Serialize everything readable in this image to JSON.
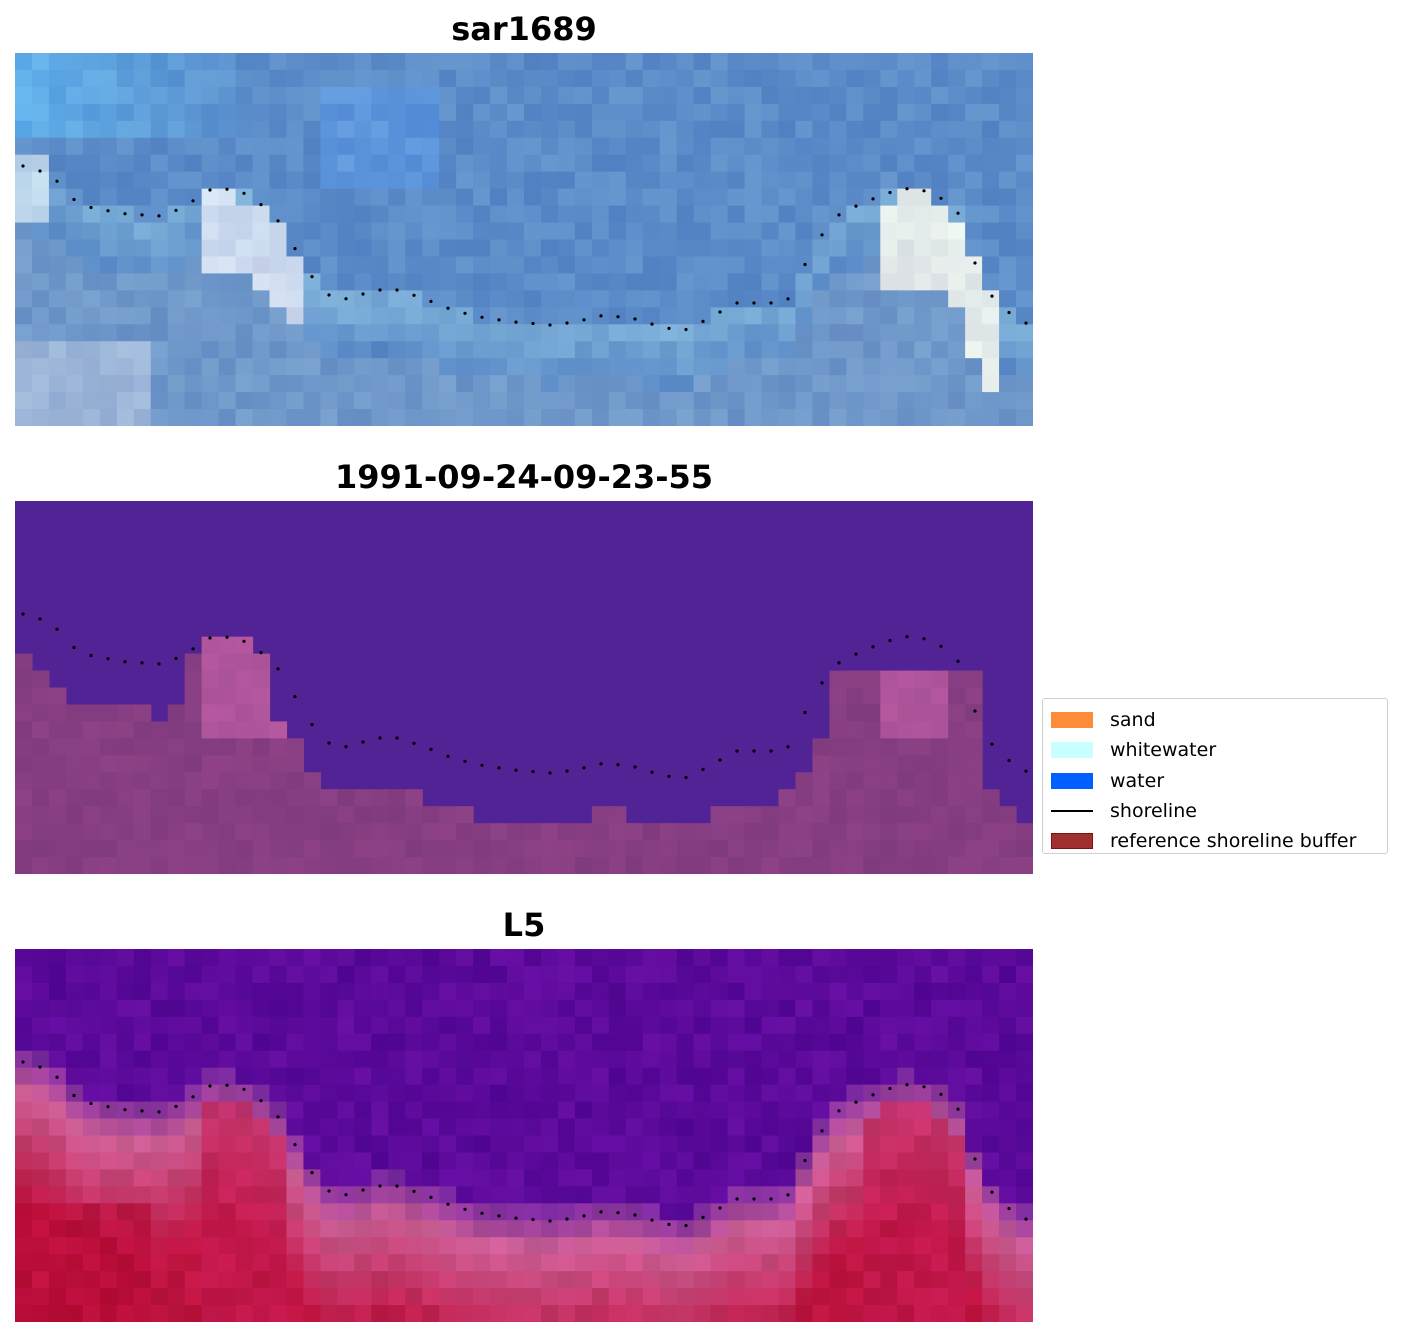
{
  "panels": [
    {
      "title": "sar1689"
    },
    {
      "title": "1991-09-24-09-23-55"
    },
    {
      "title": "L5"
    }
  ],
  "legend": {
    "items": [
      {
        "label": "sand",
        "color": "#ff8c3a",
        "kind": "patch"
      },
      {
        "label": "whitewater",
        "color": "#c8ffff",
        "kind": "patch"
      },
      {
        "label": "water",
        "color": "#0060ff",
        "kind": "patch"
      },
      {
        "label": "shoreline",
        "color": "#000000",
        "kind": "line"
      },
      {
        "label": "reference shoreline buffer",
        "color": "#a0302e",
        "edge": "#7a1414",
        "kind": "patch"
      }
    ]
  }
}
